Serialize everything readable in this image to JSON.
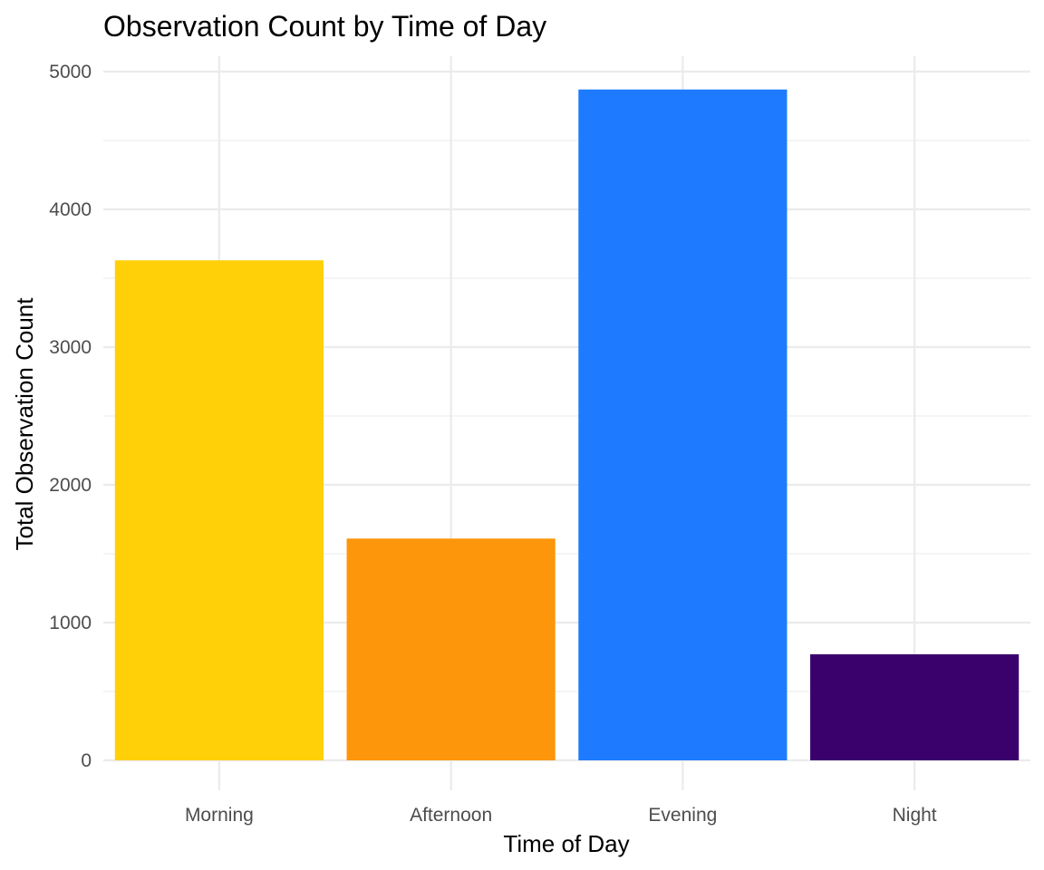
{
  "chart_data": {
    "type": "bar",
    "title": "Observation Count by Time of Day",
    "xlabel": "Time of Day",
    "ylabel": "Total Observation Count",
    "categories": [
      "Morning",
      "Afternoon",
      "Evening",
      "Night"
    ],
    "values": [
      3630,
      1610,
      4870,
      770
    ],
    "colors": [
      "#FFD008",
      "#FD960B",
      "#1E7BFF",
      "#3A006C"
    ],
    "ylim": [
      0,
      5000
    ],
    "yticks": [
      0,
      1000,
      2000,
      3000,
      4000,
      5000
    ],
    "grid": true,
    "legend": "none"
  }
}
